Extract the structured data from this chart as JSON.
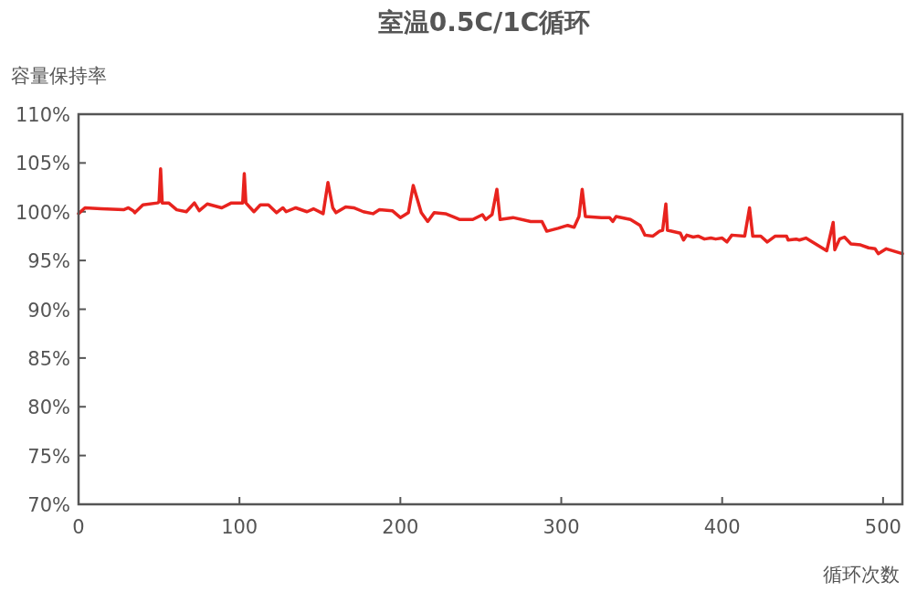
{
  "chart_data": {
    "type": "line",
    "title": "室温0.5C/1C循环",
    "xlabel": "循环次数",
    "ylabel": "容量保持率",
    "color": "#e8231e",
    "x": [
      0,
      4,
      14,
      28,
      31,
      34,
      35,
      40,
      49,
      50,
      51,
      52,
      56,
      61,
      67,
      72,
      75,
      80,
      89,
      95,
      102,
      103,
      104,
      109,
      113,
      118,
      123,
      127,
      129,
      135,
      142,
      146,
      152,
      155,
      158,
      160,
      166,
      171,
      177,
      183,
      187,
      195,
      200,
      205,
      208,
      213,
      217,
      221,
      228,
      234,
      237,
      245,
      251,
      253,
      257,
      260,
      262,
      270,
      281,
      288,
      291,
      298,
      304,
      308,
      311,
      313,
      315,
      325,
      330,
      332,
      334,
      343,
      349,
      352,
      357,
      361,
      363,
      365,
      366,
      374,
      376,
      378,
      382,
      385,
      389,
      393,
      396,
      400,
      403,
      406,
      414,
      417,
      419,
      424,
      428,
      433,
      440,
      441,
      446,
      448,
      452,
      465,
      469,
      470,
      473,
      476,
      480,
      486,
      491,
      495,
      497,
      502,
      510,
      512
    ],
    "values": [
      99.8,
      100.4,
      100.3,
      100.2,
      100.4,
      100.1,
      99.9,
      100.7,
      100.9,
      101.0,
      104.4,
      100.9,
      100.9,
      100.2,
      100.0,
      100.9,
      100.1,
      100.8,
      100.4,
      100.9,
      100.9,
      103.9,
      100.9,
      100.0,
      100.7,
      100.7,
      99.9,
      100.4,
      100.0,
      100.4,
      100.0,
      100.3,
      99.8,
      103.0,
      100.4,
      99.9,
      100.5,
      100.4,
      100.0,
      99.8,
      100.2,
      100.1,
      99.4,
      99.9,
      102.7,
      99.9,
      99.0,
      99.9,
      99.8,
      99.4,
      99.2,
      99.2,
      99.7,
      99.2,
      99.7,
      102.3,
      99.2,
      99.4,
      99.0,
      99.0,
      98.0,
      98.3,
      98.6,
      98.4,
      99.5,
      102.3,
      99.5,
      99.4,
      99.4,
      99.0,
      99.5,
      99.2,
      98.6,
      97.6,
      97.5,
      98.0,
      98.1,
      100.8,
      98.1,
      97.8,
      97.1,
      97.6,
      97.4,
      97.5,
      97.2,
      97.3,
      97.2,
      97.3,
      96.9,
      97.6,
      97.5,
      100.4,
      97.5,
      97.5,
      96.9,
      97.5,
      97.5,
      97.1,
      97.2,
      97.1,
      97.3,
      96.0,
      98.9,
      96.1,
      97.2,
      97.4,
      96.7,
      96.6,
      96.3,
      96.2,
      95.7,
      96.2,
      95.8,
      95.7
    ],
    "xlim": [
      0,
      512
    ],
    "ylim": [
      70,
      110
    ],
    "xticks": [
      0,
      100,
      200,
      300,
      400,
      500
    ],
    "yticks": [
      {
        "value": 70,
        "label": "70%"
      },
      {
        "value": 75,
        "label": "75%"
      },
      {
        "value": 80,
        "label": "80%"
      },
      {
        "value": 85,
        "label": "85%"
      },
      {
        "value": 90,
        "label": "90%"
      },
      {
        "value": 95,
        "label": "95%"
      },
      {
        "value": 100,
        "label": "100%"
      },
      {
        "value": 105,
        "label": "105%"
      },
      {
        "value": 110,
        "label": "110%"
      }
    ]
  }
}
